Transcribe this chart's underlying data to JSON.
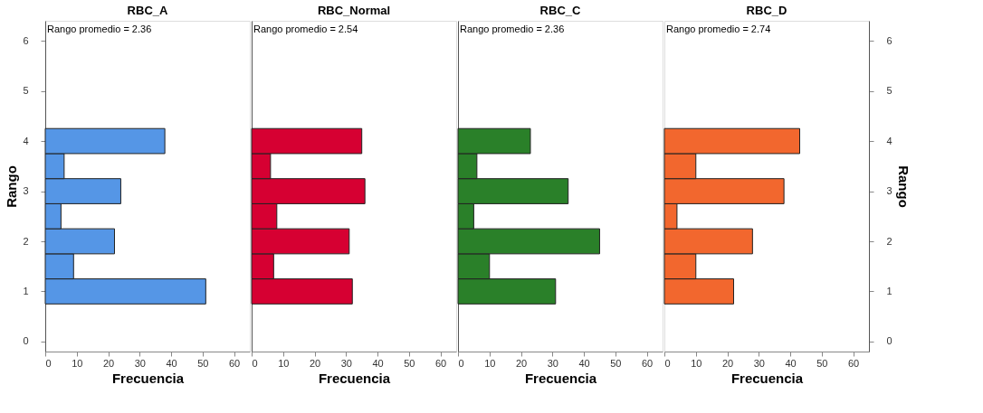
{
  "chart_data": [
    {
      "type": "histogram",
      "title": "RBC_A",
      "orientation": "horizontal",
      "bins": [
        0.75,
        1.25,
        1.75,
        2.25,
        2.75,
        3.25,
        3.75,
        4.25
      ],
      "values": [
        51,
        9,
        22,
        5,
        24,
        6,
        38
      ],
      "color": "#5596e6",
      "xlabel": "Frecuencia",
      "ylabel": "Rango",
      "xlim": [
        0,
        65
      ],
      "xticks": [
        0,
        10,
        20,
        30,
        40,
        50,
        60
      ],
      "ylim": [
        -0.2,
        6.4
      ],
      "yticks": [
        0,
        1,
        2,
        3,
        4,
        5,
        6
      ],
      "annotations": [
        "Rango promedio = 2.36"
      ]
    },
    {
      "type": "histogram",
      "title": "RBC_Normal",
      "orientation": "horizontal",
      "bins": [
        0.75,
        1.25,
        1.75,
        2.25,
        2.75,
        3.25,
        3.75,
        4.25
      ],
      "values": [
        32,
        7,
        31,
        8,
        36,
        6,
        35
      ],
      "color": "#d60032",
      "xlabel": "Frecuencia",
      "xlim": [
        0,
        65
      ],
      "xticks": [
        0,
        10,
        20,
        30,
        40,
        50,
        60
      ],
      "ylim": [
        -0.2,
        6.4
      ],
      "yticks": [
        0,
        1,
        2,
        3,
        4,
        5,
        6
      ],
      "tick_labels": "x",
      "annotations": [
        "Rango promedio = 2.54"
      ]
    },
    {
      "type": "histogram",
      "title": "RBC_C",
      "orientation": "horizontal",
      "bins": [
        0.75,
        1.25,
        1.75,
        2.25,
        2.75,
        3.25,
        3.75,
        4.25
      ],
      "values": [
        31,
        10,
        45,
        5,
        35,
        6,
        23
      ],
      "color": "#2a8029",
      "xlabel": "Frecuencia",
      "xlim": [
        0,
        65
      ],
      "xticks": [
        0,
        10,
        20,
        30,
        40,
        50,
        60
      ],
      "ylim": [
        -0.2,
        6.4
      ],
      "yticks": [
        0,
        1,
        2,
        3,
        4,
        5,
        6
      ],
      "tick_labels": "x",
      "annotations": [
        "Rango promedio = 2.36"
      ]
    },
    {
      "type": "histogram",
      "title": "RBC_D",
      "orientation": "horizontal",
      "bins": [
        0.75,
        1.25,
        1.75,
        2.25,
        2.75,
        3.25,
        3.75,
        4.25
      ],
      "values": [
        22,
        10,
        28,
        4,
        38,
        10,
        43
      ],
      "color": "#f2672e",
      "xlabel": "Frecuencia",
      "ylabel": "Rango",
      "xlim": [
        0,
        65
      ],
      "xticks": [
        0,
        10,
        20,
        30,
        40,
        50,
        60
      ],
      "ylim": [
        -0.2,
        6.4
      ],
      "yticks": [
        0,
        1,
        2,
        3,
        4,
        5,
        6
      ],
      "annotations": [
        "Rango promedio = 2.74"
      ]
    }
  ]
}
